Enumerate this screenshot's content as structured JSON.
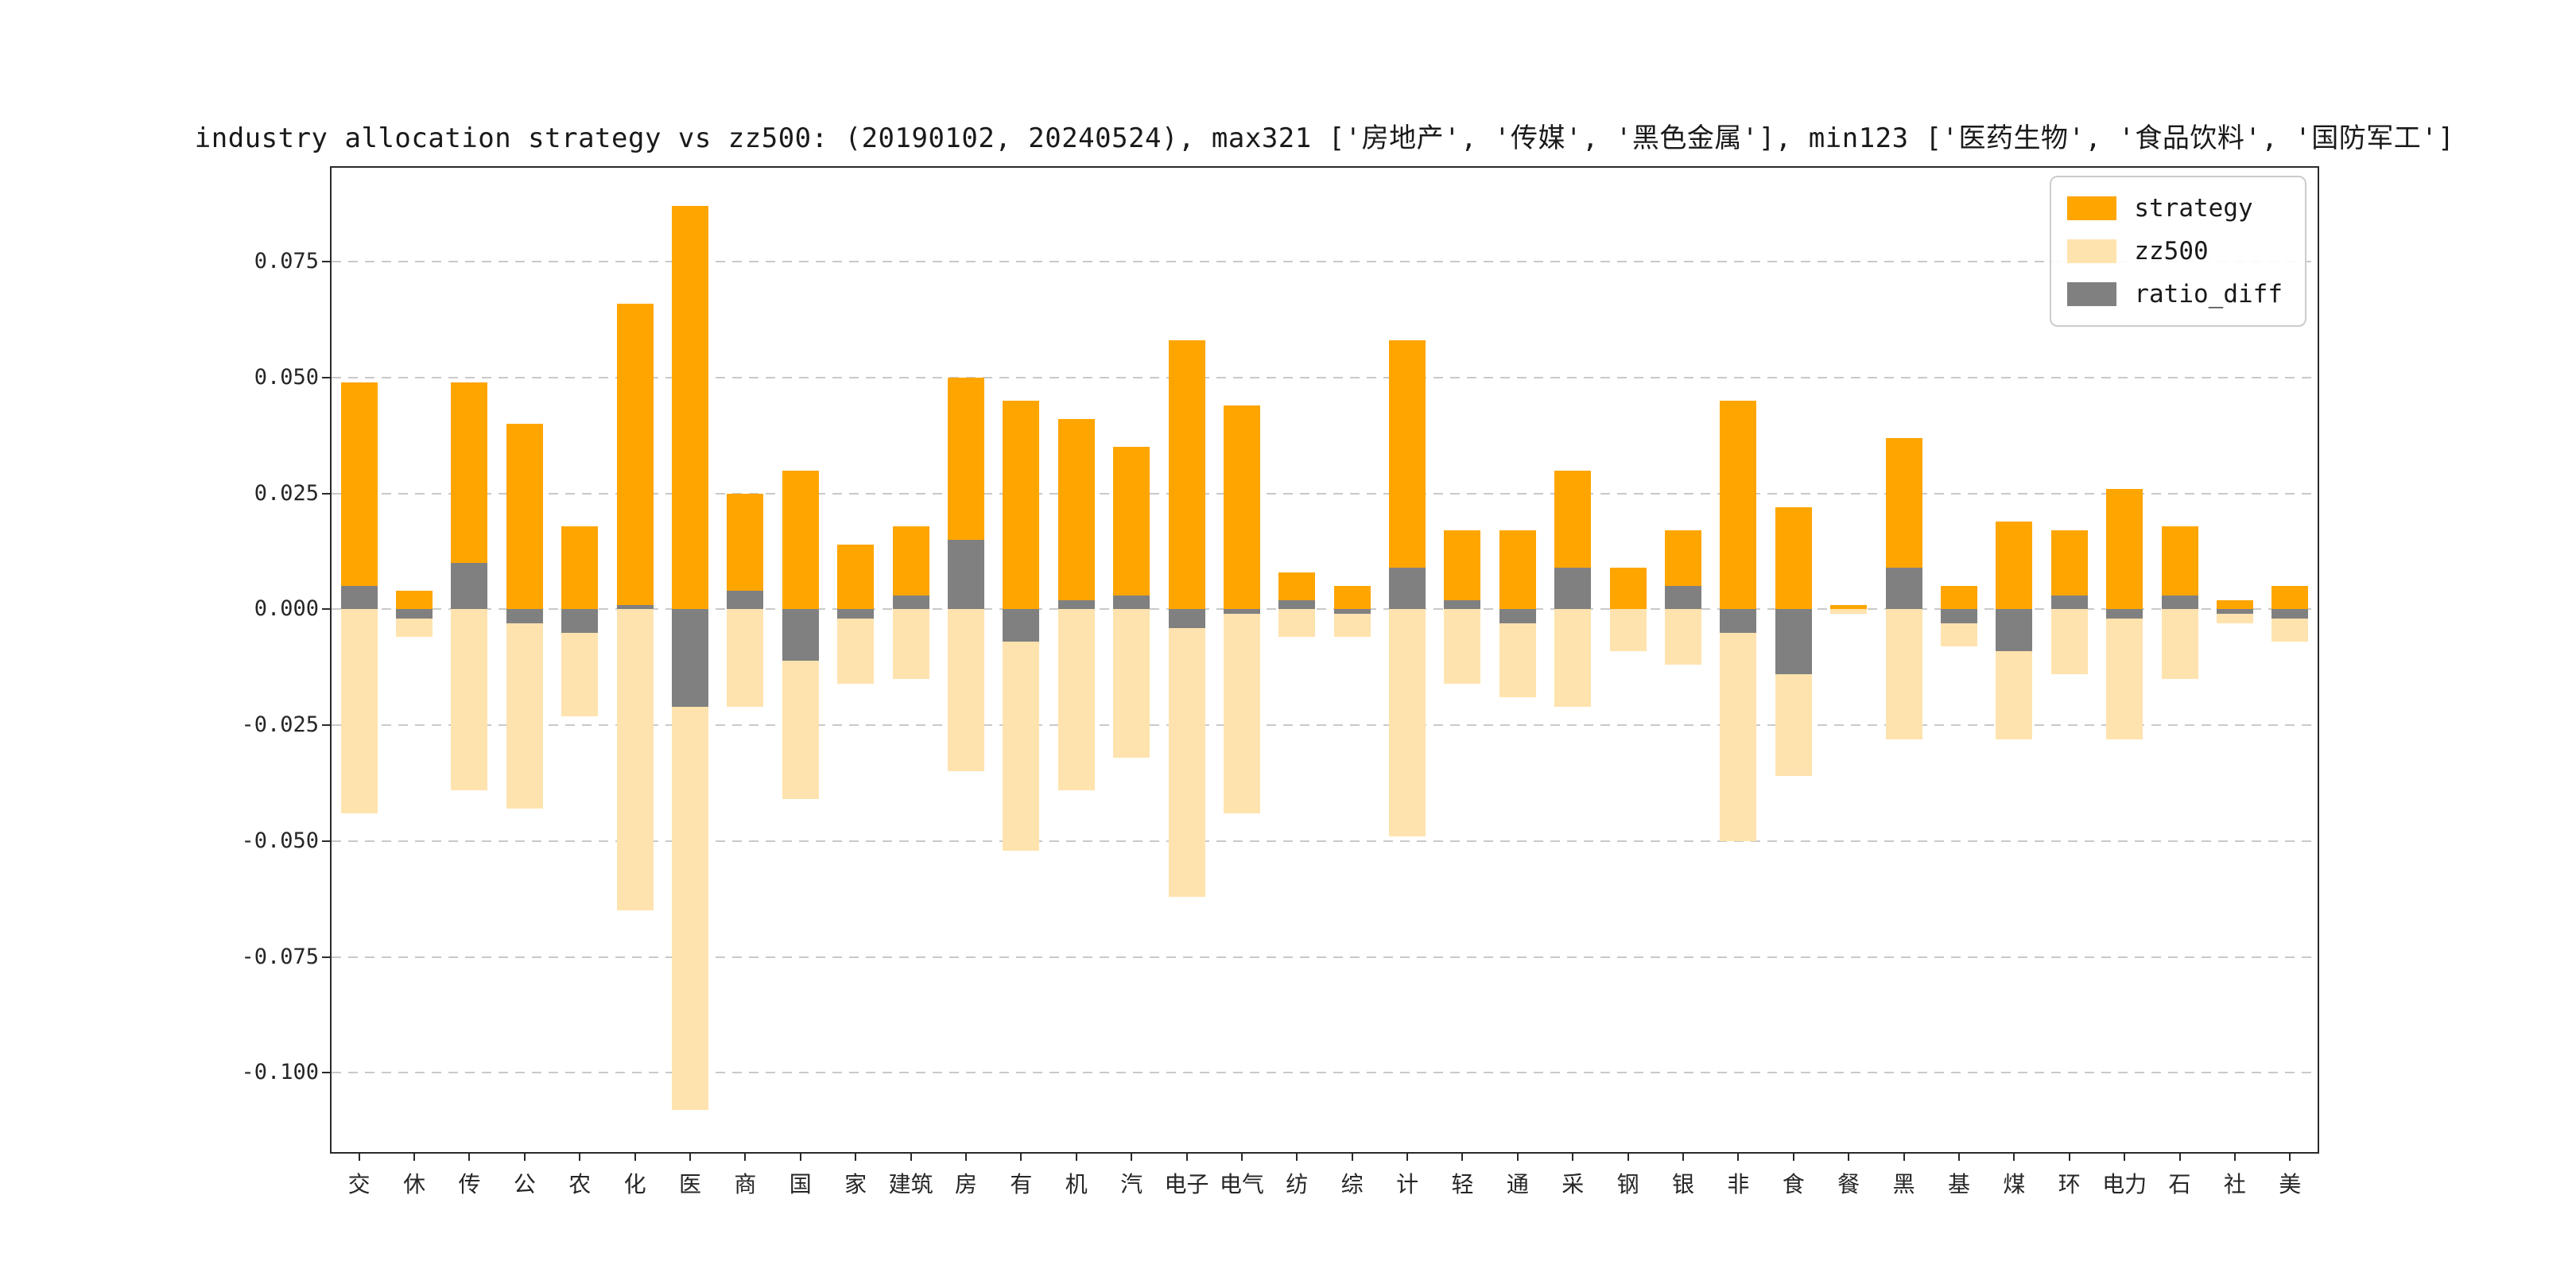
{
  "chart_data": {
    "type": "bar",
    "title": "industry allocation strategy vs zz500: (20190102, 20240524), max321 ['房地产', '传媒', '黑色金属'], min123 ['医药生物', '食品饮料', '国防军工']",
    "categories": [
      "交",
      "休",
      "传",
      "公",
      "农",
      "化",
      "医",
      "商",
      "国",
      "家",
      "建筑",
      "房",
      "有",
      "机",
      "汽",
      "电子",
      "电气",
      "纺",
      "综",
      "计",
      "轻",
      "通",
      "采",
      "钢",
      "银",
      "非",
      "食",
      "餐",
      "黑",
      "基",
      "煤",
      "环",
      "电力",
      "石",
      "社",
      "美"
    ],
    "series": [
      {
        "name": "strategy",
        "color": "#FFA500",
        "values": [
          0.049,
          0.004,
          0.049,
          0.04,
          0.018,
          0.066,
          0.087,
          0.025,
          0.03,
          0.014,
          0.018,
          0.05,
          0.045,
          0.041,
          0.035,
          0.058,
          0.044,
          0.008,
          0.005,
          0.058,
          0.017,
          0.017,
          0.03,
          0.009,
          0.017,
          0.045,
          0.022,
          0.001,
          0.037,
          0.005,
          0.019,
          0.017,
          0.026,
          0.018,
          0.002,
          0.005
        ]
      },
      {
        "name": "zz500",
        "color": "#FFE3AE",
        "values": [
          -0.044,
          -0.006,
          -0.039,
          -0.043,
          -0.023,
          -0.065,
          -0.108,
          -0.021,
          -0.041,
          -0.016,
          -0.015,
          -0.035,
          -0.052,
          -0.039,
          -0.032,
          -0.062,
          -0.044,
          -0.006,
          -0.006,
          -0.049,
          -0.016,
          -0.019,
          -0.021,
          -0.009,
          -0.012,
          -0.05,
          -0.036,
          -0.001,
          -0.028,
          -0.008,
          -0.028,
          -0.014,
          -0.028,
          -0.015,
          -0.003,
          -0.007
        ]
      },
      {
        "name": "ratio_diff",
        "color": "#808080",
        "values": [
          0.005,
          -0.002,
          0.01,
          -0.003,
          -0.005,
          0.001,
          -0.021,
          0.004,
          -0.011,
          -0.002,
          0.003,
          0.015,
          -0.007,
          0.002,
          0.003,
          -0.004,
          -0.001,
          0.002,
          -0.001,
          0.009,
          0.002,
          -0.003,
          0.009,
          0.0,
          0.005,
          -0.005,
          -0.014,
          0.0,
          0.009,
          -0.003,
          -0.009,
          0.003,
          -0.002,
          0.003,
          -0.001,
          -0.002
        ]
      }
    ],
    "ylim": [
      -0.1171,
      0.0953
    ],
    "y_tick_values": [
      0.075,
      0.05,
      0.025,
      0.0,
      -0.025,
      -0.05,
      -0.075,
      -0.1
    ],
    "y_tick_labels": [
      "0.075",
      "0.050",
      "0.025",
      "0.000",
      "-0.025",
      "-0.050",
      "-0.075",
      "-0.100"
    ],
    "xlabel": "",
    "ylabel": "",
    "grid": true,
    "grid_style": "dashed",
    "legend_position": "upper right",
    "colors": {
      "strategy": "#FFA500",
      "zz500": "#FFE3AE",
      "ratio_diff": "#808080",
      "grid": "#c9c9c9",
      "spine": "#2a2a2a",
      "background": "#ffffff"
    }
  }
}
